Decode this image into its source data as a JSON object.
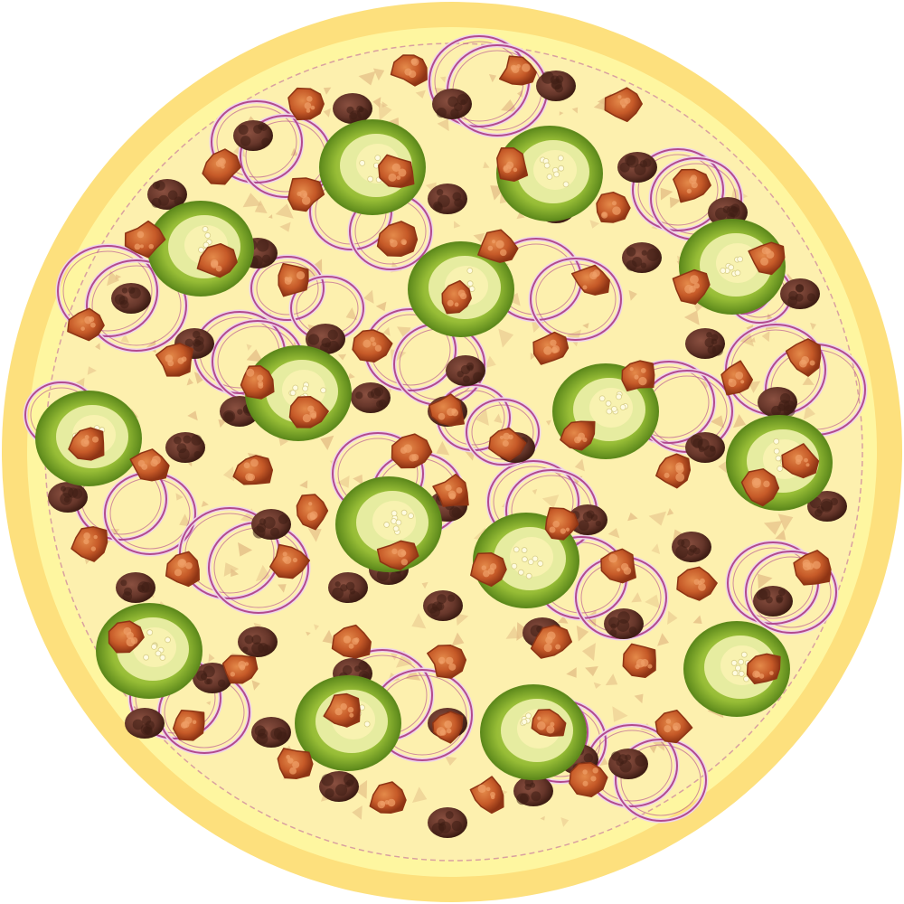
{
  "image": {
    "subject": "pizza",
    "view": "top-down",
    "background_color": "#ffffff"
  },
  "colors": {
    "crust_outer": "#fde07d",
    "crust_inner": "#fef6a0",
    "cheese": "#fdf0ae",
    "cheese_flake": "#e5c088",
    "sauce_edge": "#c83a3a",
    "onion": "#b24a8e",
    "onion_light": "#efd4ea",
    "pepper": "#8eb832",
    "pepper_dark": "#5e8a1c",
    "pepper_seed": "#f8f2b0",
    "chicken": "#cc5d2e",
    "chicken_dark": "#8e3414",
    "beef": "#6f3b2d",
    "beef_dark": "#3e1d14"
  },
  "toppings": {
    "jalapeno": "jalapeno-slice-icon",
    "red_onion": "red-onion-ring-icon",
    "chicken": "chicken-piece-icon",
    "ground_beef": "ground-beef-icon",
    "cheese": "cheese-flake-icon"
  }
}
